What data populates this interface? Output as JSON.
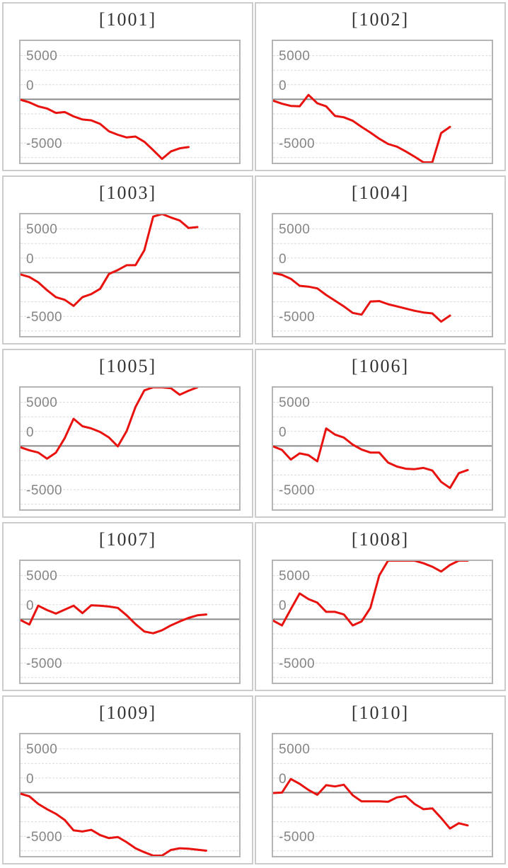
{
  "colors": {
    "series_line": "#e8120e",
    "zero_line": "#8a8a8a",
    "grid_dashed": "#dadada",
    "chart_border": "#b5b5b5",
    "cell_border": "#cccccc",
    "title_text": "#333333",
    "axis_text": "#858585"
  },
  "axis": {
    "y_ticks": [
      "5000",
      "0",
      "-5000"
    ],
    "ylim": [
      -7232,
      6667
    ],
    "grid": "dashed-horizontal"
  },
  "chart_data": [
    {
      "type": "line",
      "machine": "1001",
      "title": "[1001]",
      "y_ticks": [
        "5000",
        "0",
        "-5000"
      ],
      "ylim": [
        -7232,
        6667
      ],
      "values": [
        -50,
        -350,
        -800,
        -1050,
        -1550,
        -1450,
        -1950,
        -2300,
        -2400,
        -2800,
        -3650,
        -4050,
        -4350,
        -4250,
        -4850,
        -5800,
        -6800,
        -5950,
        -5600,
        -5450
      ]
    },
    {
      "type": "line",
      "machine": "1002",
      "title": "[1002]",
      "y_ticks": [
        "5000",
        "0",
        "-5000"
      ],
      "ylim": [
        -7232,
        6667
      ],
      "values": [
        -150,
        -500,
        -750,
        -800,
        500,
        -450,
        -800,
        -1900,
        -2050,
        -2450,
        -3150,
        -3800,
        -4500,
        -5100,
        -5400,
        -5950,
        -6550,
        -7200,
        -7200,
        -3850,
        -3150
      ]
    },
    {
      "type": "line",
      "machine": "1003",
      "title": "[1003]",
      "y_ticks": [
        "5000",
        "0",
        "-5000"
      ],
      "ylim": [
        -7232,
        6667
      ],
      "values": [
        -200,
        -500,
        -1100,
        -2000,
        -2800,
        -3100,
        -3800,
        -2800,
        -2450,
        -1850,
        -150,
        300,
        850,
        850,
        2550,
        6400,
        6700,
        6300,
        5950,
        5100,
        5200
      ]
    },
    {
      "type": "line",
      "machine": "1004",
      "title": "[1004]",
      "y_ticks": [
        "5000",
        "0",
        "-5000"
      ],
      "ylim": [
        -7232,
        6667
      ],
      "values": [
        -50,
        -250,
        -700,
        -1500,
        -1600,
        -1800,
        -2550,
        -3200,
        -3850,
        -4600,
        -4800,
        -3300,
        -3250,
        -3600,
        -3850,
        -4100,
        -4350,
        -4550,
        -4650,
        -5600,
        -4900
      ]
    },
    {
      "type": "line",
      "machine": "1005",
      "title": "[1005]",
      "y_ticks": [
        "5000",
        "0",
        "-5000"
      ],
      "ylim": [
        -7232,
        6667
      ],
      "values": [
        -150,
        -500,
        -750,
        -1450,
        -770,
        900,
        3100,
        2250,
        2000,
        1600,
        970,
        -50,
        1700,
        4450,
        6350,
        6700,
        6700,
        6600,
        5850,
        6300,
        6700
      ]
    },
    {
      "type": "line",
      "machine": "1006",
      "title": "[1006]",
      "y_ticks": [
        "5000",
        "0",
        "-5000"
      ],
      "ylim": [
        -7232,
        6667
      ],
      "values": [
        -50,
        -450,
        -1550,
        -850,
        -1050,
        -1750,
        2000,
        1300,
        950,
        150,
        -400,
        -750,
        -750,
        -1900,
        -2350,
        -2600,
        -2650,
        -2500,
        -2800,
        -4100,
        -4800,
        -3100,
        -2750
      ]
    },
    {
      "type": "line",
      "machine": "1007",
      "title": "[1007]",
      "y_ticks": [
        "5000",
        "0",
        "-5000"
      ],
      "ylim": [
        -7232,
        6667
      ],
      "values": [
        -100,
        -600,
        1550,
        1050,
        650,
        1100,
        1550,
        700,
        1600,
        1550,
        1450,
        1300,
        450,
        -550,
        -1400,
        -1600,
        -1250,
        -700,
        -250,
        150,
        450,
        550
      ]
    },
    {
      "type": "line",
      "machine": "1008",
      "title": "[1008]",
      "y_ticks": [
        "5000",
        "0",
        "-5000"
      ],
      "ylim": [
        -7232,
        6667
      ],
      "values": [
        -150,
        -700,
        1150,
        2950,
        2300,
        1900,
        850,
        850,
        550,
        -700,
        -250,
        1300,
        5000,
        6700,
        6700,
        6700,
        6700,
        6400,
        6000,
        5450,
        6200,
        6700,
        6700
      ]
    },
    {
      "type": "line",
      "machine": "1009",
      "title": "[1009]",
      "y_ticks": [
        "5000",
        "0",
        "-5000"
      ],
      "ylim": [
        -7232,
        6667
      ],
      "values": [
        -130,
        -430,
        -1290,
        -1900,
        -2420,
        -3130,
        -4310,
        -4440,
        -4260,
        -4850,
        -5200,
        -5070,
        -5660,
        -6360,
        -6810,
        -7200,
        -7200,
        -6550,
        -6360,
        -6410,
        -6520,
        -6630
      ]
    },
    {
      "type": "line",
      "machine": "1010",
      "title": "[1010]",
      "y_ticks": [
        "5000",
        "0",
        "-5000"
      ],
      "ylim": [
        -7232,
        6667
      ],
      "values": [
        -50,
        0,
        1550,
        1000,
        300,
        -250,
        850,
        700,
        900,
        -300,
        -1000,
        -1000,
        -1000,
        -1050,
        -550,
        -400,
        -1300,
        -1900,
        -1800,
        -2900,
        -4100,
        -3500,
        -3750
      ]
    }
  ]
}
